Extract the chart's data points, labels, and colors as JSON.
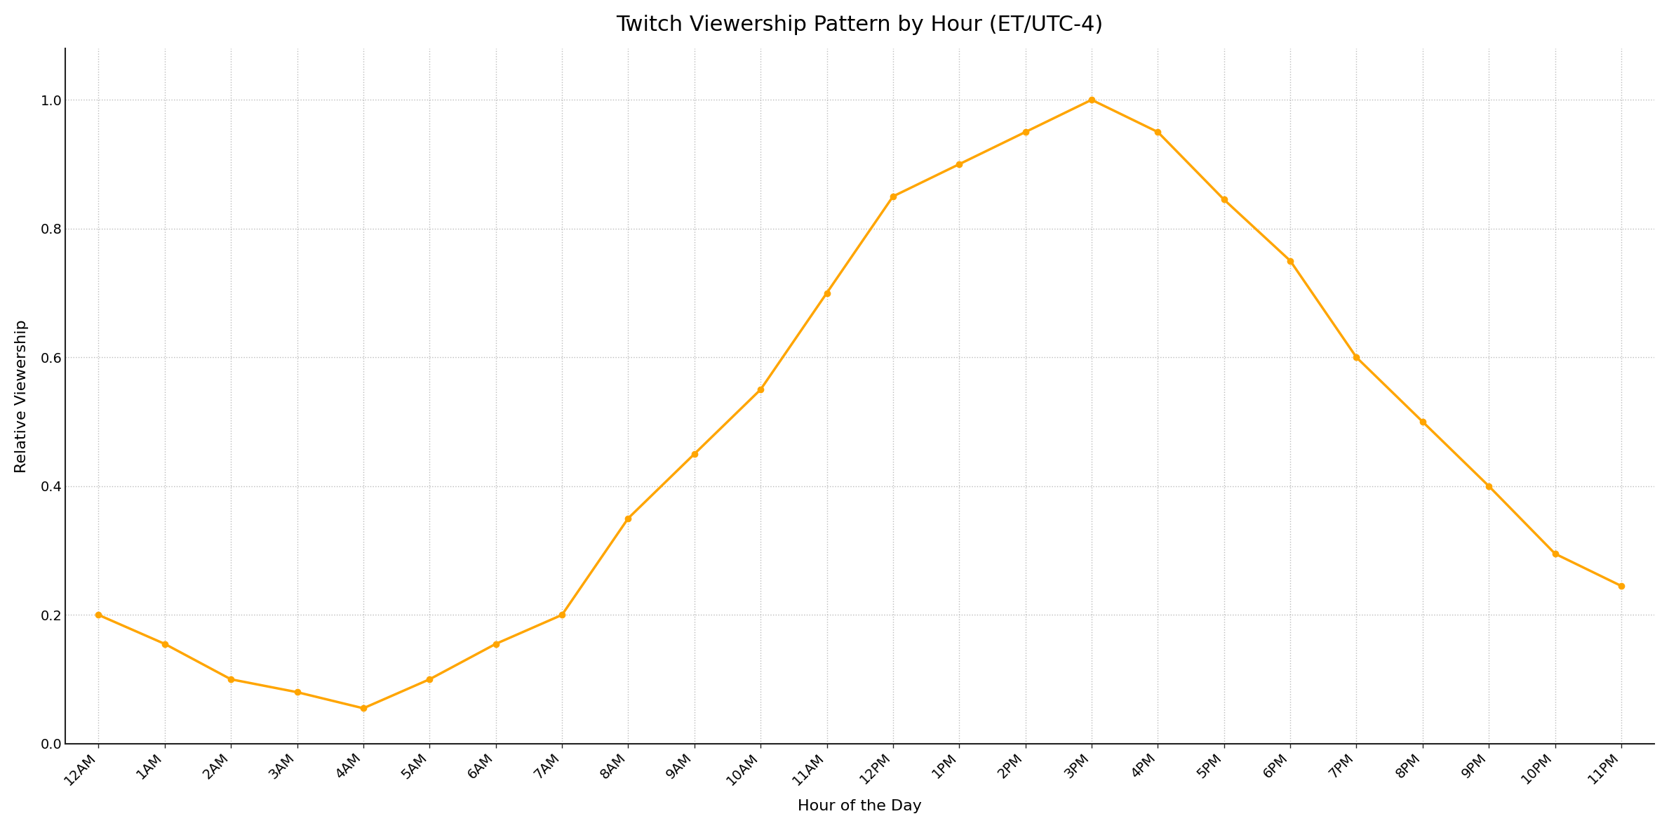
{
  "title": "Twitch Viewership Pattern by Hour (ET/UTC-4)",
  "xlabel": "Hour of the Day",
  "ylabel": "Relative Viewership",
  "hours": [
    "12AM",
    "1AM",
    "2AM",
    "3AM",
    "4AM",
    "5AM",
    "6AM",
    "7AM",
    "8AM",
    "9AM",
    "10AM",
    "11AM",
    "12PM",
    "1PM",
    "2PM",
    "3PM",
    "4PM",
    "5PM",
    "6PM",
    "7PM",
    "8PM",
    "9PM",
    "10PM",
    "11PM"
  ],
  "values": [
    0.2,
    0.155,
    0.1,
    0.08,
    0.055,
    0.1,
    0.155,
    0.2,
    0.35,
    0.45,
    0.55,
    0.7,
    0.85,
    0.9,
    0.95,
    1.0,
    0.95,
    0.845,
    0.75,
    0.6,
    0.5,
    0.4,
    0.295,
    0.245
  ],
  "line_color": "#FFA500",
  "marker": "o",
  "marker_size": 6,
  "line_width": 2.5,
  "ylim": [
    0,
    1.08
  ],
  "yticks": [
    0.0,
    0.2,
    0.4,
    0.6,
    0.8,
    1.0
  ],
  "background_color": "#ffffff",
  "grid_color": "#bbbbbb",
  "title_fontsize": 22,
  "label_fontsize": 16,
  "tick_fontsize": 14
}
